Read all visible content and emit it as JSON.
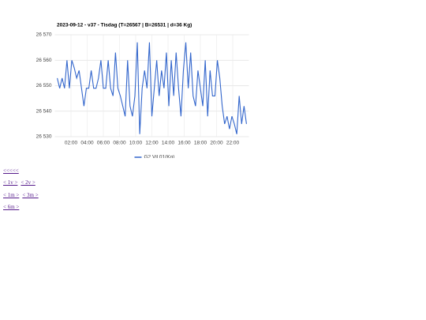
{
  "chart_data": {
    "type": "line",
    "title": "2023-09-12 - v37 - Tisdag (T=26567 | B=26531 | d=36 Kg)",
    "x": [
      0.3,
      0.6,
      0.9,
      1.2,
      1.5,
      1.8,
      2.1,
      2.4,
      2.7,
      3.0,
      3.3,
      3.6,
      3.9,
      4.2,
      4.5,
      4.8,
      5.1,
      5.4,
      5.7,
      6.0,
      6.3,
      6.6,
      6.9,
      7.2,
      7.5,
      7.8,
      8.1,
      8.4,
      8.7,
      9.0,
      9.3,
      9.6,
      9.9,
      10.2,
      10.5,
      10.8,
      11.1,
      11.4,
      11.7,
      12.0,
      12.3,
      12.6,
      12.9,
      13.2,
      13.5,
      13.8,
      14.1,
      14.4,
      14.7,
      15.0,
      15.3,
      15.6,
      15.9,
      16.2,
      16.5,
      16.8,
      17.1,
      17.4,
      17.7,
      18.0,
      18.3,
      18.6,
      18.9,
      19.2,
      19.5,
      19.8,
      20.1,
      20.4,
      20.7,
      21.0,
      21.3,
      21.6,
      21.9,
      22.2,
      22.5,
      22.8,
      23.1,
      23.4,
      23.7
    ],
    "series": [
      {
        "name": "G2 Vil 01(Kg)",
        "color": "#3366cc",
        "values": [
          26553,
          26549,
          26553,
          26549,
          26560,
          26549,
          26560,
          26557,
          26553,
          26556,
          26549,
          26542,
          26549,
          26549,
          26556,
          26549,
          26549,
          26553,
          26560,
          26549,
          26549,
          26560,
          26549,
          26546,
          26563,
          26549,
          26546,
          26542,
          26538,
          26560,
          26542,
          26538,
          26546,
          26567,
          26531,
          26549,
          26556,
          26549,
          26567,
          26538,
          26549,
          26560,
          26546,
          26556,
          26549,
          26563,
          26542,
          26560,
          26546,
          26563,
          26549,
          26538,
          26556,
          26567,
          26549,
          26563,
          26546,
          26542,
          26556,
          26549,
          26542,
          26560,
          26538,
          26556,
          26546,
          26546,
          26560,
          26553,
          26542,
          26535,
          26538,
          26533,
          26538,
          26535,
          26531,
          26546,
          26535,
          26542,
          26535
        ]
      }
    ],
    "xlim": [
      0,
      24
    ],
    "xticks": [
      {
        "value": 2,
        "label": "02:00"
      },
      {
        "value": 4,
        "label": "04:00"
      },
      {
        "value": 6,
        "label": "06:00"
      },
      {
        "value": 8,
        "label": "08:00"
      },
      {
        "value": 10,
        "label": "10:00"
      },
      {
        "value": 12,
        "label": "12:00"
      },
      {
        "value": 14,
        "label": "14:00"
      },
      {
        "value": 16,
        "label": "16:00"
      },
      {
        "value": 18,
        "label": "18:00"
      },
      {
        "value": 20,
        "label": "20:00"
      },
      {
        "value": 22,
        "label": "22:00"
      }
    ],
    "ylim": [
      26530,
      26570
    ],
    "yticks": [
      {
        "value": 26530,
        "label": "26 530"
      },
      {
        "value": 26540,
        "label": "26 540"
      },
      {
        "value": 26550,
        "label": "26 550"
      },
      {
        "value": 26560,
        "label": "26 560"
      },
      {
        "value": 26570,
        "label": "26 570"
      }
    ],
    "grid": true,
    "legend": "bottom"
  },
  "links": [
    [
      "<<<<<"
    ],
    [
      "< 1v >",
      "< 2v >"
    ],
    [
      "< 1m >",
      "< 3m >"
    ],
    [
      "< 6m >"
    ]
  ]
}
